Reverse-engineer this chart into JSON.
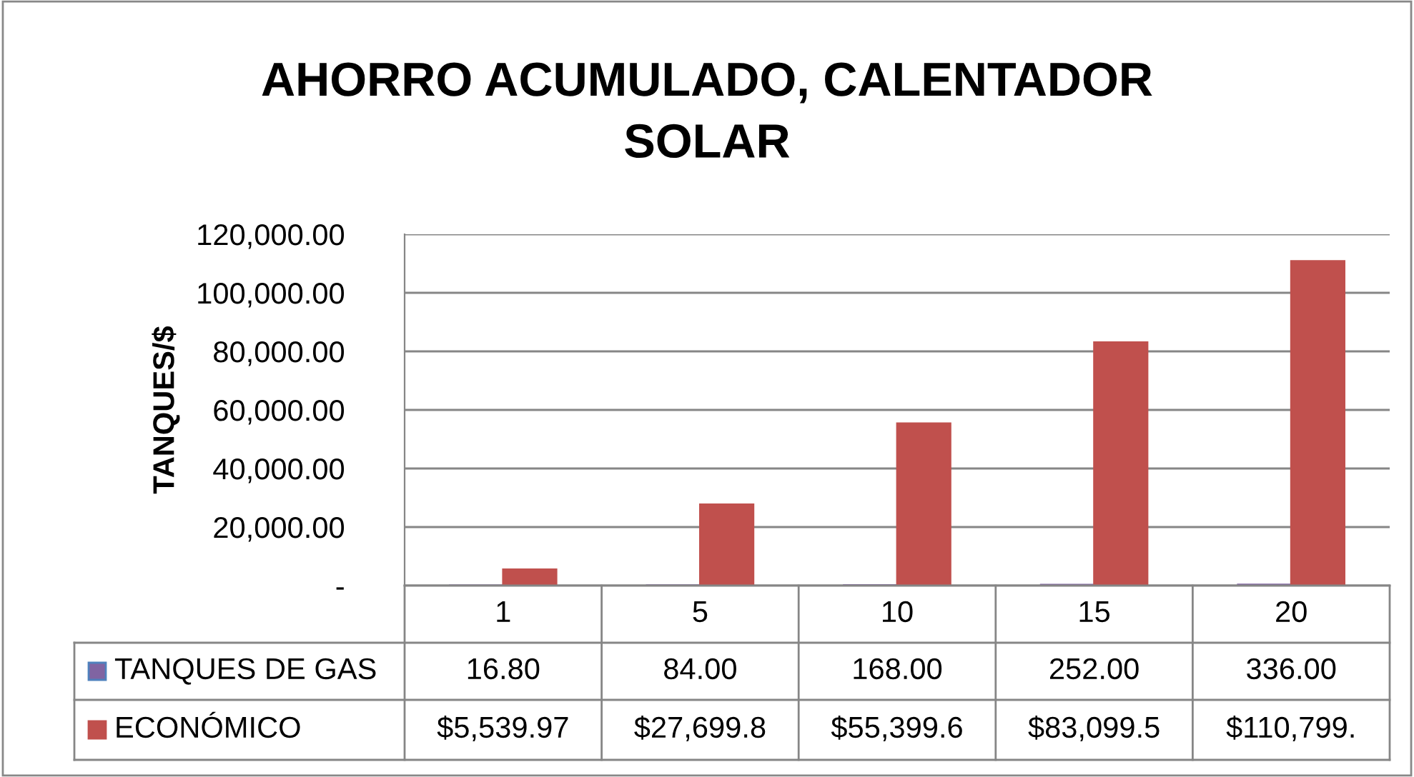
{
  "chart_data": {
    "type": "bar",
    "title": "AHORRO ACUMULADO, CALENTADOR SOLAR",
    "ylabel": "TANQUES/$",
    "categories": [
      "1",
      "5",
      "10",
      "15",
      "20"
    ],
    "series": [
      {
        "name": "TANQUES DE GAS",
        "color": "#8064a2",
        "values": [
          16.8,
          84,
          168,
          252,
          336
        ],
        "value_labels": [
          "16.80",
          "84.00",
          "168.00",
          "252.00",
          "336.00"
        ]
      },
      {
        "name": "ECONÓMICO",
        "color": "#c0504d",
        "values": [
          5539.97,
          27699.8,
          55399.6,
          83099.5,
          110799
        ],
        "value_labels": [
          "$5,539.97",
          "$27,699.8",
          "$55,399.6",
          "$83,099.5",
          "$110,799."
        ]
      }
    ],
    "ylim": [
      0,
      120000
    ],
    "yticks": [
      {
        "value": 0,
        "label": "-"
      },
      {
        "value": 20000,
        "label": "20,000.00"
      },
      {
        "value": 40000,
        "label": "40,000.00"
      },
      {
        "value": 60000,
        "label": "60,000.00"
      },
      {
        "value": 80000,
        "label": "80,000.00"
      },
      {
        "value": 100000,
        "label": "100,000.00"
      },
      {
        "value": 120000,
        "label": "120,000.00"
      }
    ],
    "grid": "y",
    "legend": "bottom left"
  }
}
